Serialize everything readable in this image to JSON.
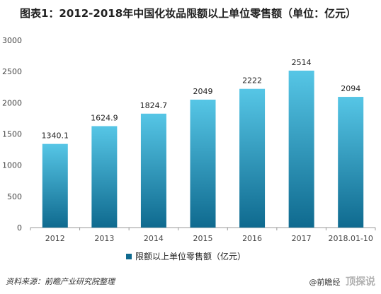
{
  "header": {
    "title": "图表1：2012-2018年中国化妆品限额以上单位零售额（单位：亿元）"
  },
  "footer": {
    "source": "资料来源：前瞻产业研究院整理",
    "brand": "@前瞻经",
    "stamp": "顶探说"
  },
  "colors": {
    "bar_top": "#56c6e6",
    "bar_bottom": "#0f6a8f",
    "axis": "#999999",
    "tick_text": "#444444"
  },
  "chart_data": {
    "type": "bar",
    "categories": [
      "2012",
      "2013",
      "2014",
      "2015",
      "2016",
      "2017",
      "2018.01-10"
    ],
    "series": [
      {
        "name": "限额以上单位零售额（亿元）",
        "values": [
          1340.1,
          1624.9,
          1824.7,
          2049,
          2222,
          2514,
          2094
        ],
        "labels": [
          "1340.1",
          "1624.9",
          "1824.7",
          "2049",
          "2222",
          "2514",
          "2094"
        ]
      }
    ],
    "yticks": [
      0,
      500,
      1000,
      1500,
      2000,
      2500,
      3000
    ],
    "ylim": [
      0,
      3000
    ],
    "grid": false,
    "legend": "bottom-center"
  }
}
